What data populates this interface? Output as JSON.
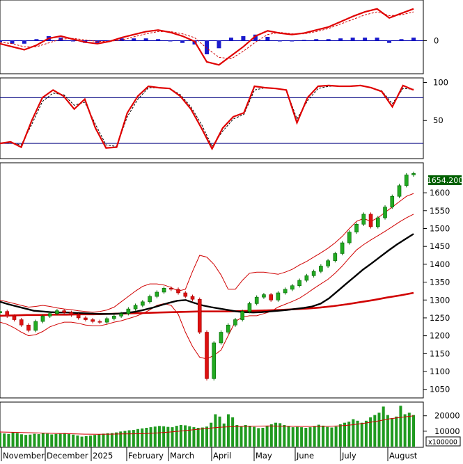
{
  "chart_data": {
    "type": "stock-chart",
    "x_axis": {
      "labels": [
        "November",
        "December",
        "2025",
        "February",
        "March",
        "April",
        "May",
        "June",
        "July",
        "August"
      ]
    },
    "macd": {
      "type": "line",
      "y_ticks": [
        0
      ],
      "ylim": [
        -40,
        50
      ],
      "series": [
        {
          "role": "macd",
          "values": [
            -4,
            -8,
            -12,
            -6,
            3,
            6,
            2,
            -2,
            -4,
            -1,
            4,
            8,
            12,
            14,
            11,
            6,
            -1,
            -28,
            -32,
            -20,
            -8,
            6,
            13,
            10,
            8,
            10,
            14,
            18,
            25,
            32,
            38,
            42,
            30,
            36,
            42
          ]
        },
        {
          "role": "signal",
          "values": [
            -2,
            -4,
            -8,
            -8,
            -3,
            2,
            3,
            1,
            -1,
            -1,
            1,
            5,
            9,
            12,
            12,
            9,
            4,
            -10,
            -22,
            -24,
            -14,
            -2,
            8,
            11,
            9,
            9,
            12,
            16,
            22,
            28,
            34,
            38,
            33,
            34,
            38
          ]
        },
        {
          "role": "histogram",
          "values": [
            -2,
            -4,
            -4,
            2,
            6,
            4,
            -1,
            -3,
            -3,
            0,
            3,
            3,
            3,
            2,
            -1,
            -3,
            -5,
            -18,
            -10,
            4,
            6,
            8,
            5,
            -1,
            -1,
            1,
            2,
            2,
            3,
            4,
            4,
            4,
            -3,
            2,
            4
          ]
        }
      ]
    },
    "stochastic": {
      "type": "line",
      "y_ticks": [
        100,
        50
      ],
      "reference_lines": [
        80,
        20
      ],
      "ylim": [
        0,
        105
      ],
      "series": [
        {
          "role": "k",
          "values": [
            20,
            22,
            15,
            50,
            80,
            90,
            82,
            65,
            78,
            40,
            14,
            15,
            60,
            82,
            95,
            93,
            92,
            82,
            65,
            40,
            13,
            40,
            55,
            60,
            95,
            93,
            92,
            90,
            47,
            80,
            95,
            96,
            95,
            95,
            96,
            93,
            88,
            68,
            96,
            90
          ]
        },
        {
          "role": "d",
          "values": [
            20,
            21,
            18,
            45,
            75,
            86,
            84,
            70,
            74,
            45,
            18,
            16,
            55,
            78,
            93,
            93,
            92,
            84,
            68,
            45,
            16,
            36,
            52,
            58,
            90,
            93,
            92,
            90,
            52,
            76,
            92,
            95,
            95,
            95,
            96,
            93,
            89,
            72,
            92,
            91
          ]
        }
      ]
    },
    "price": {
      "type": "candlestick",
      "y_ticks": [
        1050,
        1100,
        1150,
        1200,
        1250,
        1300,
        1350,
        1400,
        1450,
        1500,
        1550,
        1600
      ],
      "ylim": [
        1030,
        1680
      ],
      "last_price_label": "1654.200",
      "close": [
        1268,
        1255,
        1245,
        1230,
        1215,
        1240,
        1255,
        1262,
        1270,
        1265,
        1258,
        1250,
        1245,
        1240,
        1238,
        1248,
        1255,
        1262,
        1275,
        1285,
        1295,
        1310,
        1322,
        1333,
        1330,
        1320,
        1310,
        1302,
        1210,
        1080,
        1180,
        1210,
        1230,
        1245,
        1268,
        1290,
        1308,
        1315,
        1300,
        1320,
        1330,
        1340,
        1355,
        1368,
        1380,
        1395,
        1410,
        1430,
        1460,
        1490,
        1512,
        1540,
        1505,
        1530,
        1560,
        1590,
        1620,
        1650,
        1654
      ],
      "bollinger_upper": [
        1300,
        1295,
        1290,
        1285,
        1280,
        1282,
        1285,
        1282,
        1278,
        1275,
        1273,
        1270,
        1268,
        1266,
        1268,
        1272,
        1280,
        1295,
        1310,
        1325,
        1338,
        1345,
        1345,
        1342,
        1335,
        1325,
        1330,
        1380,
        1425,
        1420,
        1400,
        1370,
        1330,
        1330,
        1355,
        1375,
        1378,
        1378,
        1375,
        1372,
        1378,
        1386,
        1398,
        1408,
        1420,
        1432,
        1445,
        1460,
        1478,
        1500,
        1520,
        1528,
        1520,
        1530,
        1545,
        1560,
        1575,
        1590,
        1598
      ],
      "bollinger_lower": [
        1238,
        1232,
        1222,
        1210,
        1200,
        1203,
        1212,
        1225,
        1232,
        1238,
        1238,
        1235,
        1230,
        1228,
        1228,
        1232,
        1238,
        1242,
        1248,
        1254,
        1262,
        1272,
        1285,
        1290,
        1285,
        1260,
        1210,
        1170,
        1140,
        1135,
        1145,
        1160,
        1200,
        1240,
        1252,
        1256,
        1256,
        1262,
        1268,
        1280,
        1288,
        1296,
        1305,
        1318,
        1332,
        1345,
        1358,
        1375,
        1395,
        1418,
        1440,
        1455,
        1468,
        1480,
        1492,
        1505,
        1518,
        1530,
        1540
      ],
      "ma_black": [
        1295,
        1288,
        1282,
        1276,
        1270,
        1268,
        1266,
        1265,
        1265,
        1264,
        1263,
        1262,
        1261,
        1261,
        1262,
        1264,
        1267,
        1272,
        1278,
        1285,
        1292,
        1298,
        1300,
        1292,
        1285,
        1280,
        1276,
        1272,
        1268,
        1266,
        1265,
        1266,
        1268,
        1270,
        1272,
        1275,
        1278,
        1282,
        1290,
        1305,
        1325,
        1345,
        1365,
        1385,
        1402,
        1420,
        1438,
        1455,
        1470,
        1485
      ],
      "ma_red": [
        1256,
        1257,
        1258,
        1258,
        1259,
        1259,
        1260,
        1260,
        1261,
        1262,
        1263,
        1264,
        1265,
        1266,
        1267,
        1268,
        1268,
        1268,
        1269,
        1270,
        1271,
        1272,
        1274,
        1276,
        1279,
        1283,
        1288,
        1294,
        1300,
        1307,
        1313,
        1320
      ]
    },
    "volume": {
      "type": "bar",
      "y_ticks": [
        20000,
        10000
      ],
      "unit_label": "x100000",
      "ylim": [
        0,
        28000
      ],
      "values": [
        9000,
        8500,
        8200,
        9200,
        8800,
        8000,
        7600,
        7800,
        8300,
        8100,
        8700,
        8400,
        7900,
        8200,
        8600,
        8800,
        8300,
        7800,
        7200,
        6500,
        6800,
        7100,
        7600,
        8000,
        8400,
        8700,
        8800,
        9200,
        9800,
        10200,
        10600,
        10800,
        11400,
        11800,
        12200,
        12600,
        13000,
        13400,
        13200,
        12800,
        12600,
        13500,
        14000,
        13800,
        13200,
        12600,
        12200,
        12400,
        13000,
        15500,
        21000,
        19500,
        15000,
        21000,
        19000,
        14000,
        13000,
        14000,
        13500,
        12800,
        12000,
        12200,
        13200,
        14500,
        15500,
        15200,
        14000,
        13200,
        12600,
        12800,
        12600,
        12200,
        12600,
        13400,
        14200,
        13600,
        12800,
        12400,
        13000,
        14500,
        15500,
        16200,
        17800,
        16800,
        15500,
        16800,
        19000,
        20500,
        22000,
        26000,
        20500,
        18500,
        19500,
        26500,
        21000,
        22000,
        20500
      ],
      "ma_values": [
        9500,
        9300,
        9100,
        8900,
        8700,
        8500,
        8300,
        8100,
        8000,
        8100,
        8200,
        8300,
        8500,
        8900,
        9500,
        10200,
        11000,
        11800,
        12500,
        12900,
        13200,
        13300,
        13400,
        13300,
        13200,
        13100,
        13100,
        13200,
        13500,
        14200,
        15200,
        16500,
        18000,
        19000,
        20000
      ]
    }
  }
}
